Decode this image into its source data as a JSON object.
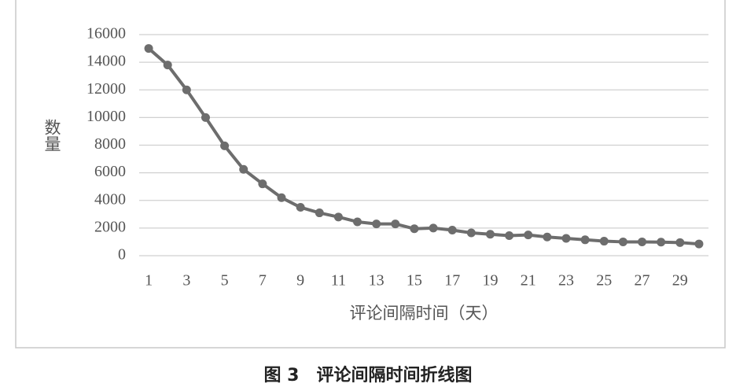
{
  "chart_data": {
    "type": "line",
    "x_label": "评论间隔时间（天）",
    "y_label": "数量",
    "caption": "图 3　评论间隔时间折线图",
    "categories": [
      "1",
      null,
      "3",
      null,
      "5",
      null,
      "7",
      null,
      "9",
      null,
      "11",
      null,
      "13",
      null,
      "15",
      null,
      "17",
      null,
      "19",
      null,
      "21",
      null,
      "23",
      null,
      "25",
      null,
      "27",
      null,
      "29",
      null
    ],
    "values": [
      15000,
      13800,
      12000,
      10000,
      7950,
      6250,
      5200,
      4200,
      3500,
      3100,
      2800,
      2450,
      2300,
      2300,
      1950,
      2000,
      1850,
      1650,
      1550,
      1450,
      1500,
      1350,
      1250,
      1150,
      1050,
      1000,
      1000,
      980,
      950,
      850
    ],
    "color": "#6d6d6d",
    "ylim": [
      0,
      16000
    ],
    "yticks": [
      0,
      2000,
      4000,
      6000,
      8000,
      10000,
      12000,
      14000,
      16000
    ],
    "grid": true
  }
}
